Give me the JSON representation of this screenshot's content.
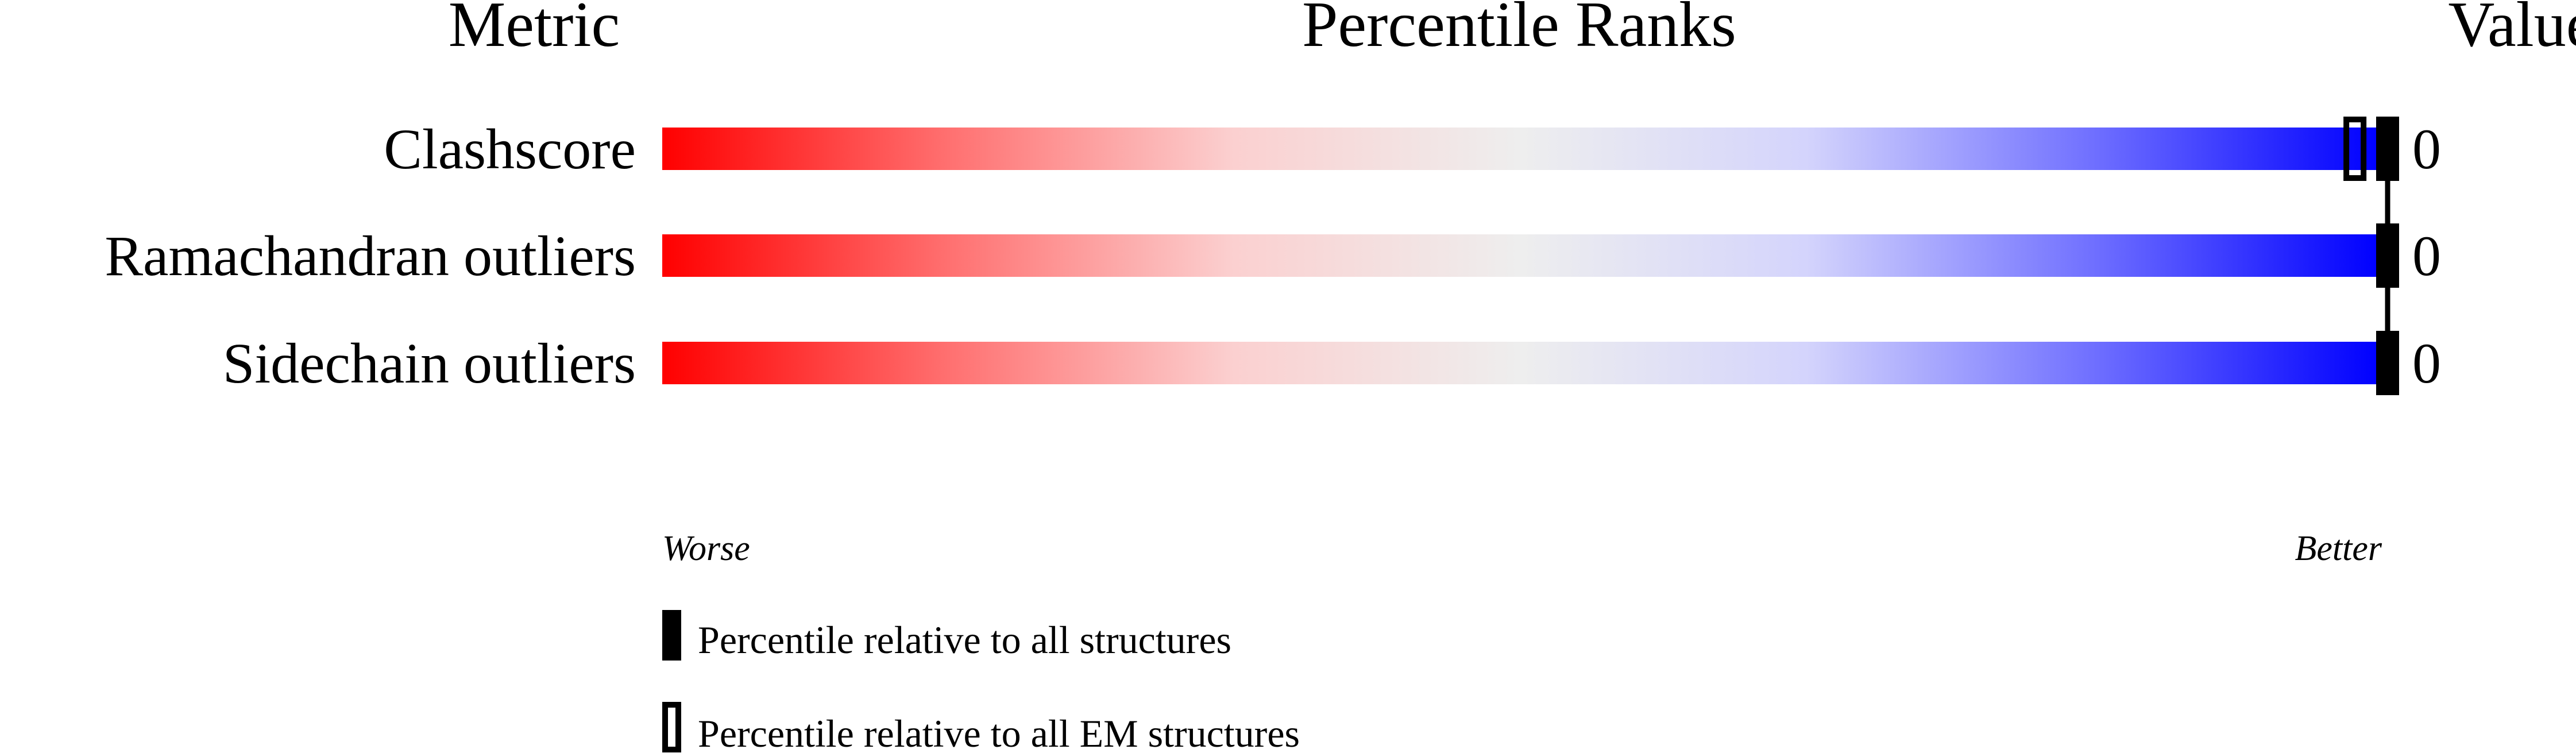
{
  "chart_data": {
    "type": "bar",
    "headers": {
      "metric": "Metric",
      "ranks": "Percentile Ranks",
      "value": "Value"
    },
    "categories": [
      "Clashscore",
      "Ramachandran outliers",
      "Sidechain outliers"
    ],
    "values": [
      "0",
      "0",
      "0"
    ],
    "series": [
      {
        "name": "Percentile relative to all structures",
        "style": "filled",
        "percentiles": [
          100,
          100,
          100
        ]
      },
      {
        "name": "Percentile relative to all EM structures",
        "style": "open",
        "percentiles": [
          99,
          null,
          null
        ]
      }
    ],
    "xlim": [
      0,
      100
    ],
    "scale_labels": {
      "worse": "Worse",
      "better": "Better"
    },
    "gradient_colors": [
      "#ff0000",
      "#ff7070",
      "#fbd0d0",
      "#eeeeee",
      "#d4d4fc",
      "#7070ff",
      "#0000ff"
    ],
    "legend_placement": "bottom-left"
  }
}
